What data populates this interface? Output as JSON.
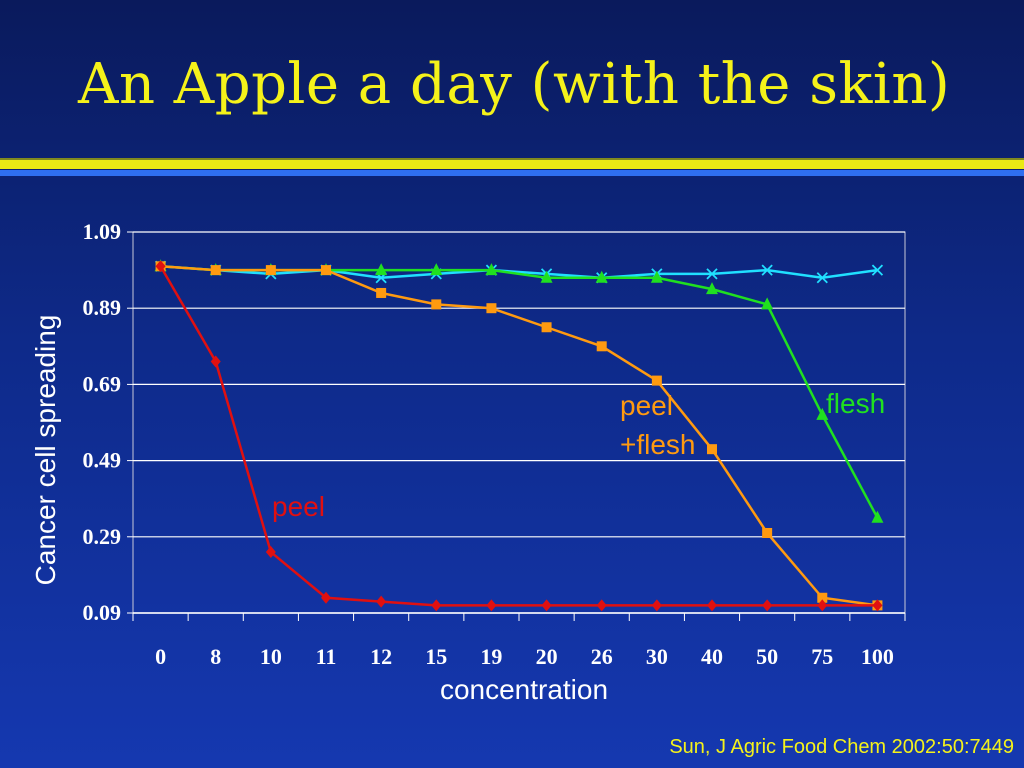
{
  "slide": {
    "title": "An Apple a day (with the skin)",
    "citation": "Sun, J Agric Food Chem 2002:50:7449"
  },
  "colors": {
    "title": "#f5f21a",
    "peel": "#e01010",
    "peel_flesh": "#ff9a10",
    "flesh": "#20e020",
    "control": "#20e0ff"
  },
  "chart_data": {
    "type": "line",
    "title": "",
    "xlabel": "concentration",
    "ylabel": "Cancer cell spreading",
    "categories": [
      "0",
      "8",
      "10",
      "11",
      "12",
      "15",
      "19",
      "20",
      "26",
      "30",
      "40",
      "50",
      "75",
      "100"
    ],
    "yticks": [
      "0.09",
      "0.29",
      "0.49",
      "0.69",
      "0.89",
      "1.09"
    ],
    "ylim": [
      0.09,
      1.09
    ],
    "grid": true,
    "series": [
      {
        "key": "control",
        "name": "",
        "marker": "x",
        "values": [
          1.0,
          0.99,
          0.98,
          0.99,
          0.97,
          0.98,
          0.99,
          0.98,
          0.97,
          0.98,
          0.98,
          0.99,
          0.97,
          0.99
        ]
      },
      {
        "key": "flesh",
        "name": "flesh",
        "marker": "triangle",
        "values": [
          1.0,
          0.99,
          0.99,
          0.99,
          0.99,
          0.99,
          0.99,
          0.97,
          0.97,
          0.97,
          0.94,
          0.9,
          0.61,
          0.34
        ]
      },
      {
        "key": "peel_flesh",
        "name": "peel +flesh",
        "marker": "square",
        "values": [
          1.0,
          0.99,
          0.99,
          0.99,
          0.93,
          0.9,
          0.89,
          0.84,
          0.79,
          0.7,
          0.52,
          0.3,
          0.13,
          0.11
        ]
      },
      {
        "key": "peel",
        "name": "peel",
        "marker": "diamond",
        "values": [
          1.0,
          0.75,
          0.25,
          0.13,
          0.12,
          0.11,
          0.11,
          0.11,
          0.11,
          0.11,
          0.11,
          0.11,
          0.11,
          0.11
        ]
      }
    ],
    "annotations": {
      "peel": "peel",
      "peel_flesh_line1": "peel",
      "peel_flesh_line2": "+flesh",
      "flesh": "flesh"
    }
  }
}
